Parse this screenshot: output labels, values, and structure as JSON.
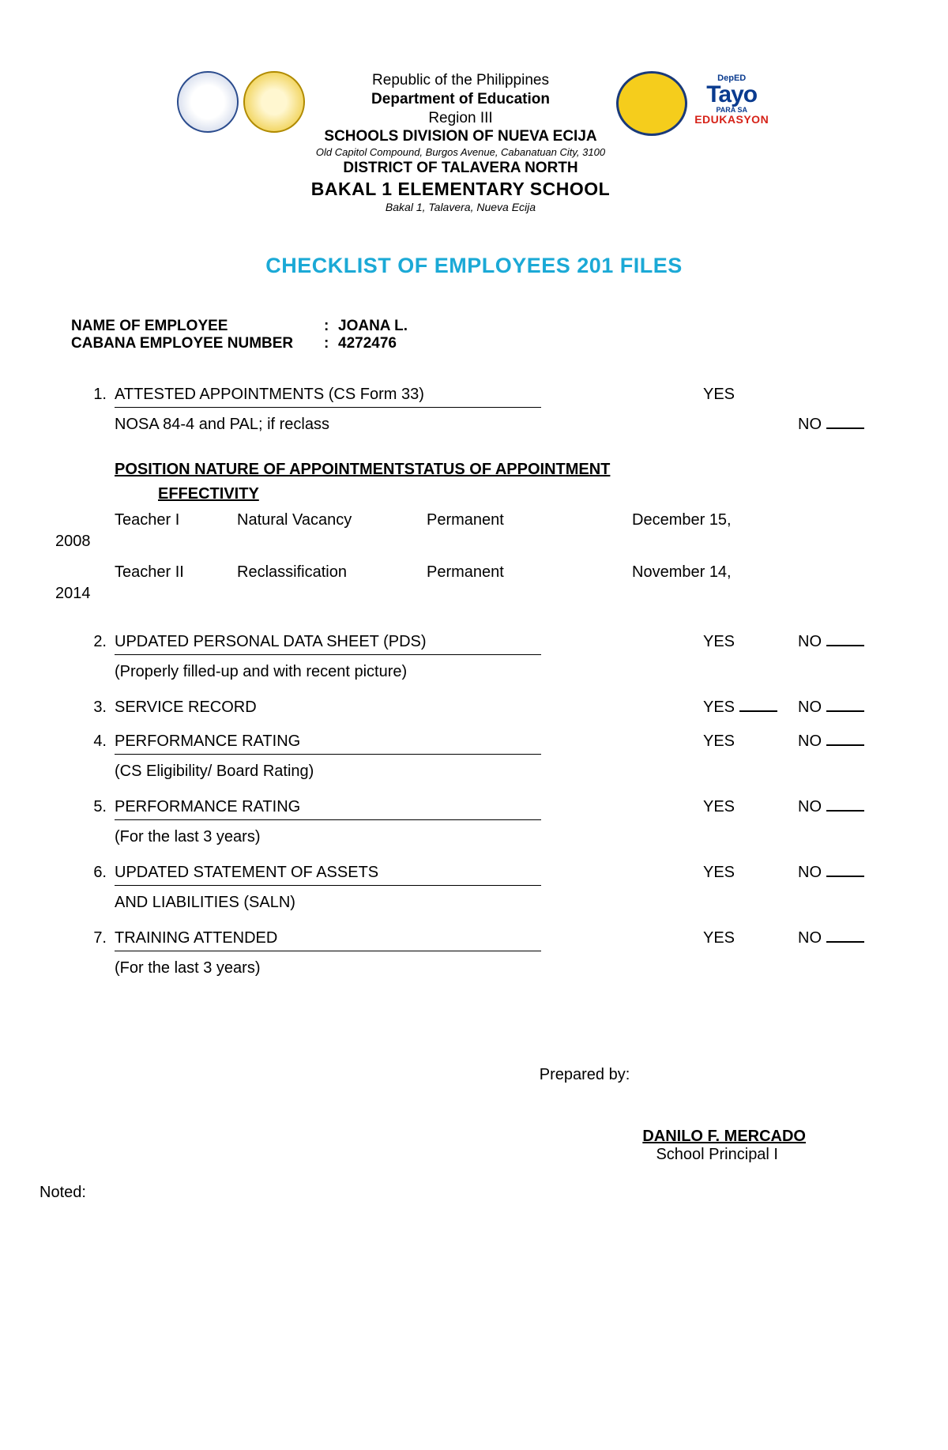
{
  "header": {
    "line1": "Republic of the Philippines",
    "line2": "Department of Education",
    "line3": "Region III",
    "line4": "SCHOOLS DIVISION OF NUEVA ECIJA",
    "line5": "Old Capitol Compound, Burgos Avenue, Cabanatuan City, 3100",
    "line6": "DISTRICT OF TALAVERA NORTH",
    "line7": "BAKAL 1 ELEMENTARY SCHOOL",
    "line8": "Bakal 1, Talavera, Nueva Ecija"
  },
  "tayo": {
    "top": "DepED",
    "main": "Tayo",
    "sub": "PARA SA",
    "edu": "EDUKASYON"
  },
  "title": "CHECKLIST OF EMPLOYEES 201 FILES",
  "employee": {
    "name_label": "NAME OF EMPLOYEE",
    "name_value": "JOANA L.",
    "num_label": "CABANA EMPLOYEE NUMBER",
    "num_value": "4272476"
  },
  "items": {
    "i1": {
      "num": "1.",
      "label": "ATTESTED APPOINTMENTS (CS Form 33)",
      "yes": "YES",
      "sub": "NOSA 84-4 and PAL; if reclass",
      "no": "NO"
    },
    "table_heading1": "POSITION  NATURE  OF  APPOINTMENTSTATUS  OF  APPOINTMENT",
    "table_heading2": "EFFECTIVITY",
    "rows": {
      "r1": {
        "pos": "Teacher I",
        "nat": "Natural Vacancy",
        "stat": "Permanent",
        "date": "December 15,",
        "year": "2008"
      },
      "r2": {
        "pos": "Teacher II",
        "nat": "Reclassification",
        "stat": "Permanent",
        "date": "November 14,",
        "year": "2014"
      }
    },
    "i2": {
      "num": "2.",
      "label": "UPDATED PERSONAL DATA SHEET (PDS)",
      "yes": "YES",
      "no": "NO",
      "sub": "(Properly filled-up and with recent picture)"
    },
    "i3": {
      "num": "3.",
      "label": "SERVICE RECORD",
      "yes": "YES",
      "no": "NO"
    },
    "i4": {
      "num": "4.",
      "label": "PERFORMANCE RATING",
      "yes": "YES",
      "no": "NO",
      "sub": "(CS Eligibility/ Board Rating)"
    },
    "i5": {
      "num": "5.",
      "label": "PERFORMANCE RATING",
      "yes": "YES",
      "no": "NO",
      "sub": "(For the last 3 years)"
    },
    "i6": {
      "num": "6.",
      "label": "UPDATED STATEMENT OF ASSETS",
      "yes": "YES",
      "no": "NO",
      "sub": "AND LIABILITIES (SALN)"
    },
    "i7": {
      "num": "7.",
      "label": "TRAINING ATTENDED",
      "yes": "YES",
      "no": "NO",
      "sub": "(For the last 3 years)"
    }
  },
  "footer": {
    "prepared": "Prepared by:",
    "sig_name": "DANILO F. MERCADO",
    "sig_title": "School Principal I",
    "noted": "Noted:"
  }
}
